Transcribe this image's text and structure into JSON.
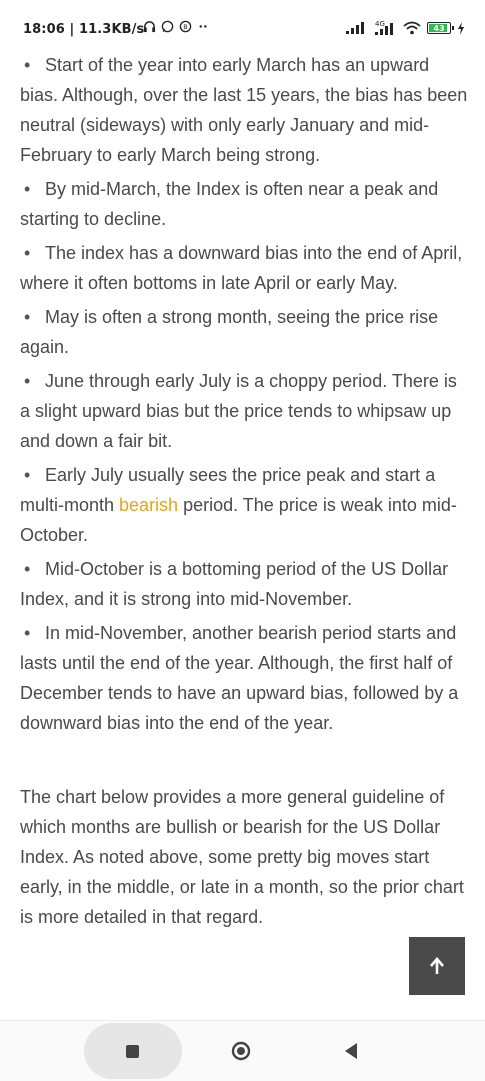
{
  "status": {
    "time": "18:06 | 11.3KB/s",
    "icons": [
      "headphones-icon",
      "whatsapp-icon",
      "b-app-icon",
      "more-dots-icon"
    ],
    "network_label": "4G",
    "battery_level": "43"
  },
  "article": {
    "bullets": [
      {
        "text": "Start of the year into early March has an upward bias. Although, over the last 15 years, the bias has been neutral (sideways) with only early January and mid-February to early March being strong."
      },
      {
        "text": "By mid-March, the Index is often near a peak and starting to decline."
      },
      {
        "text": "The index has a downward bias into the end of April, where it often bottoms in late April or early May."
      },
      {
        "text": "May is often a strong month, seeing the price rise again."
      },
      {
        "text": "June through early July is a choppy period. There is a slight upward bias but the price tends to whipsaw up and down a fair bit."
      },
      {
        "before": "Early July usually sees the price peak and start a multi-month ",
        "link": "bearish",
        "after": " period. The price is weak into mid-October."
      },
      {
        "text": "Mid-October is a bottoming period of the US Dollar Index, and it is strong into mid-November."
      },
      {
        "text": "In mid-November, another bearish period starts and lasts until the end of the year. Although, the first half of December tends to have an upward bias, followed by a downward bias into the end of the year."
      }
    ],
    "paragraph": "The chart below provides a more general guideline of which months are bullish or bearish for the US Dollar Index. As noted above, some pretty big moves start early, in the middle, or late in a month, so the prior chart is more detailed in that regard."
  },
  "colors": {
    "link": "#e8a317",
    "text": "#4a4a4a",
    "scroll_button": "#3b3b3b"
  },
  "nav": {
    "recent": "recent-apps-icon",
    "home": "home-icon",
    "back": "back-icon"
  }
}
